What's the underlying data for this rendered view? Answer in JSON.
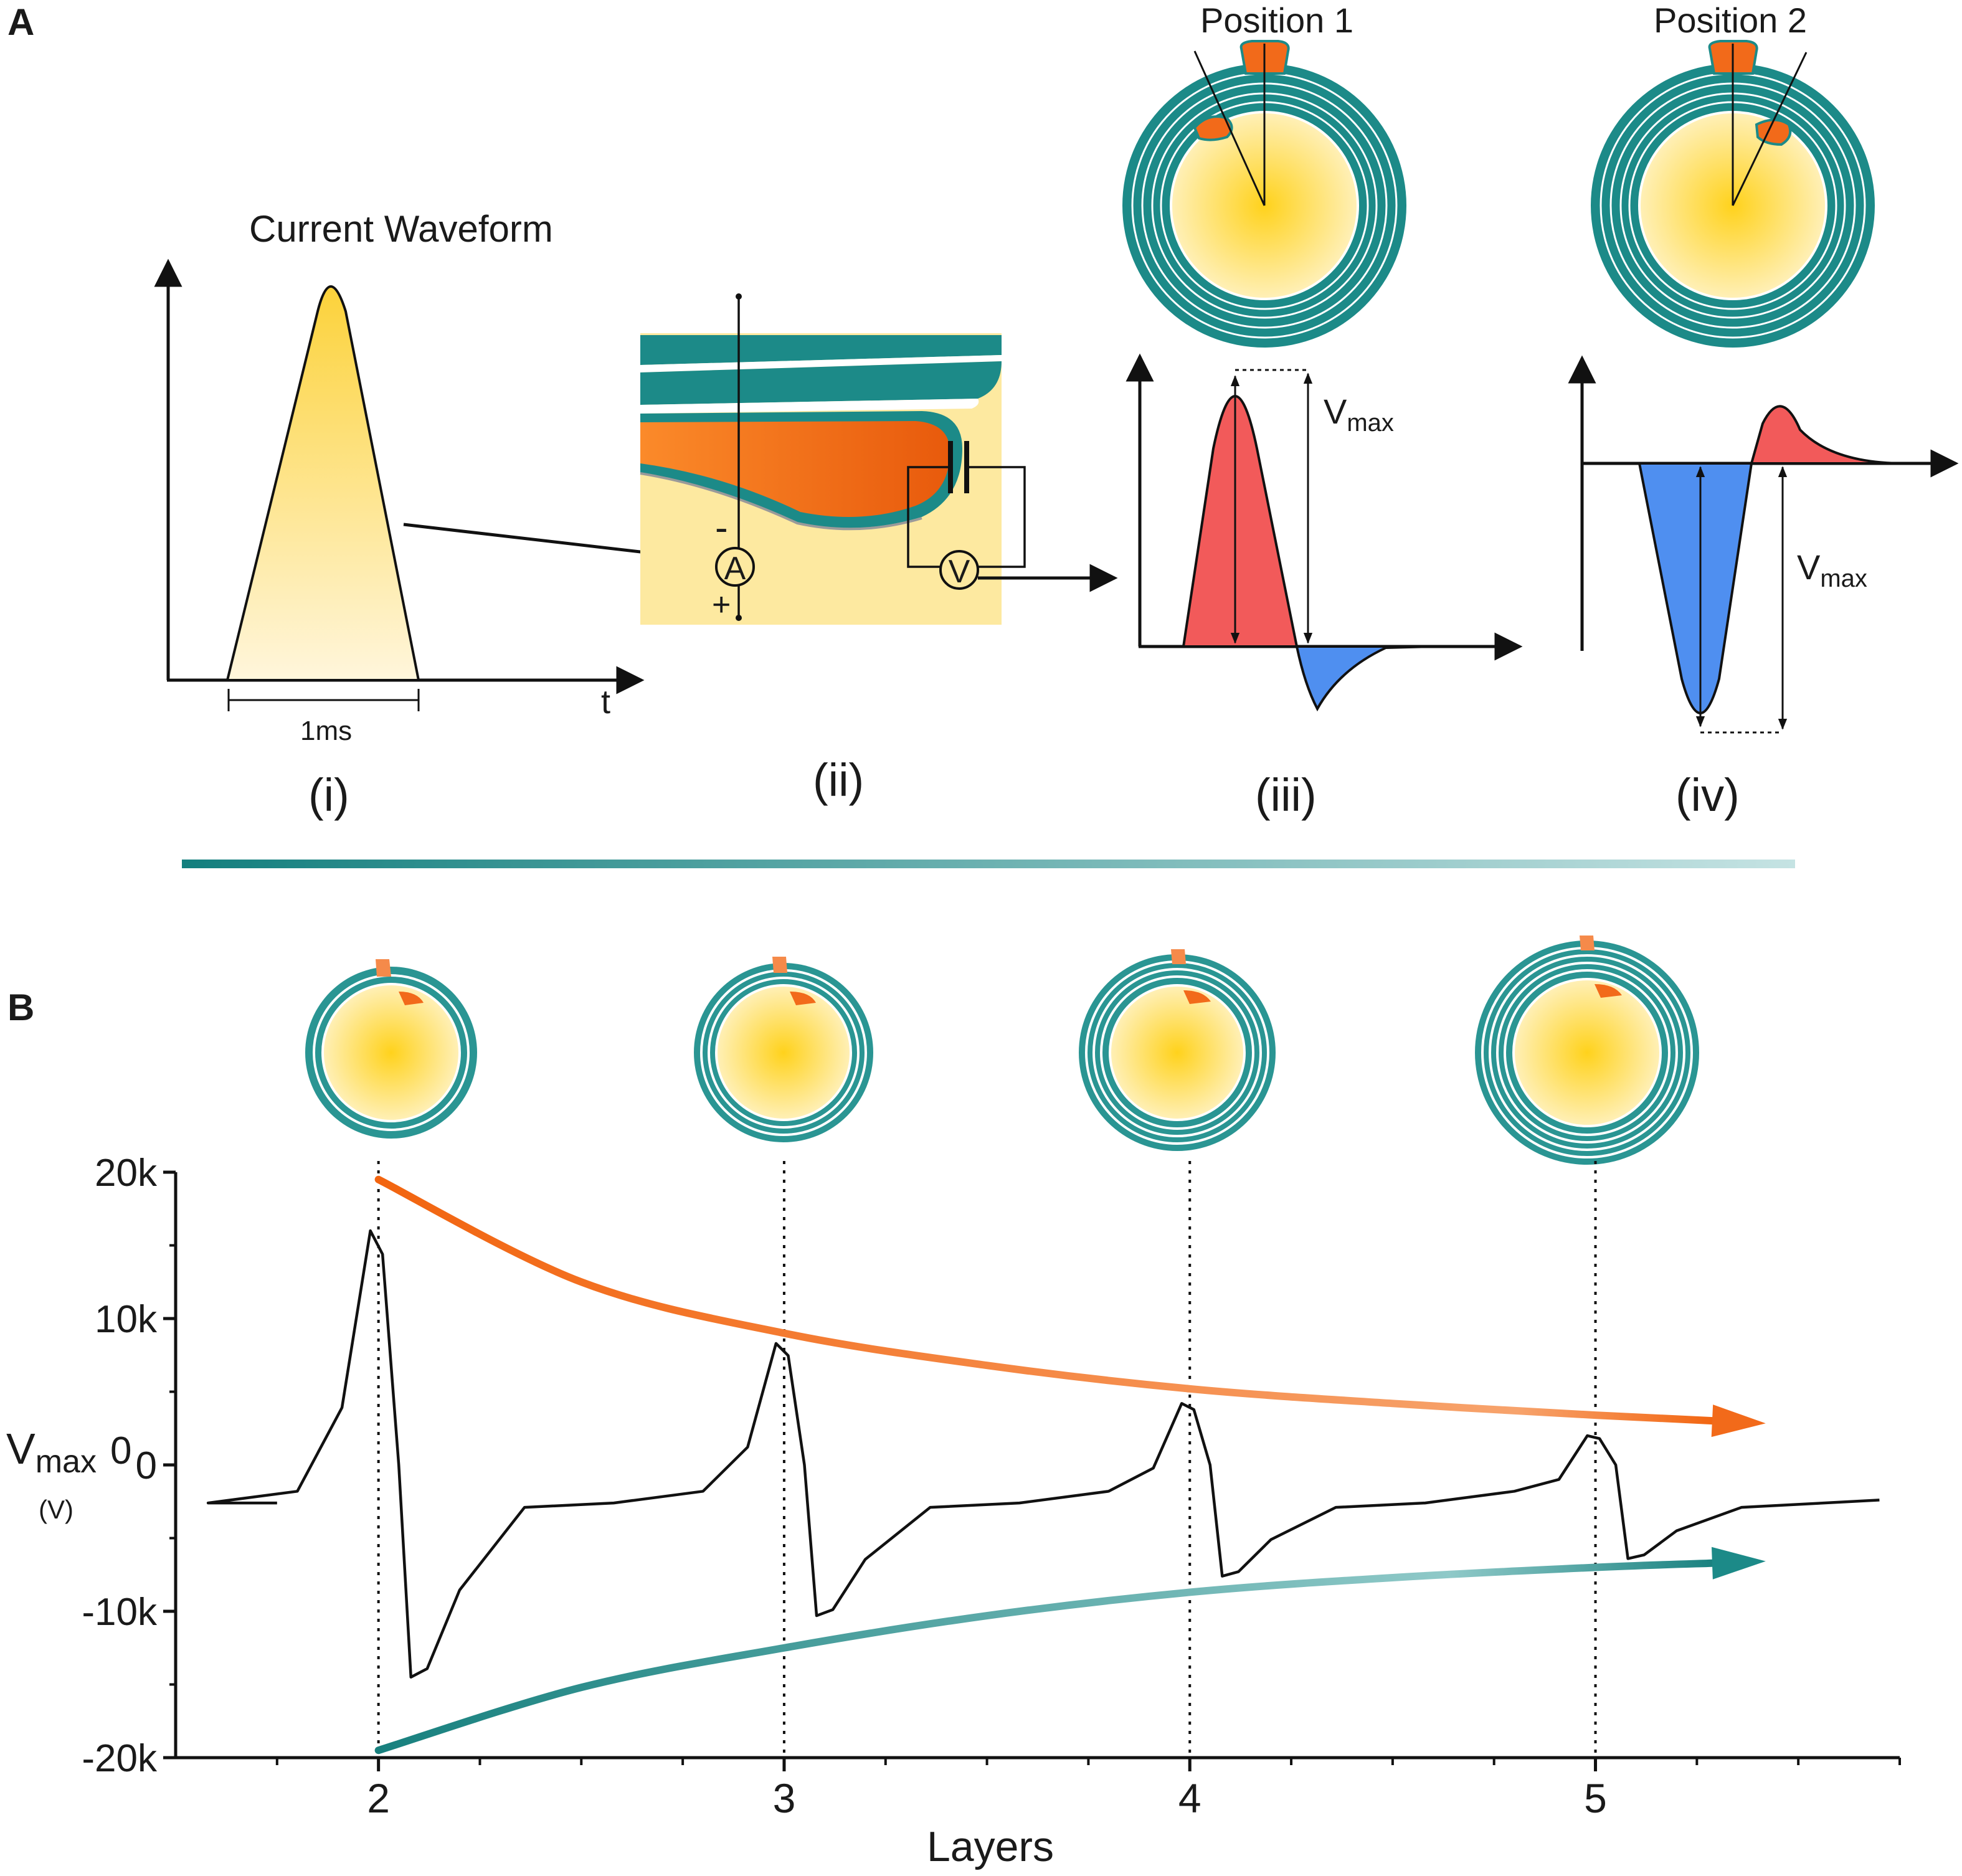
{
  "panel_a": {
    "label": "A",
    "waveform_title": "Current Waveform",
    "duration_label": "1ms",
    "time_axis_label": "t",
    "ammeter_label": "A",
    "voltmeter_label": "V",
    "minus_sign": "-",
    "plus_sign": "+",
    "position1_label": "Position 1",
    "position2_label": "Position 2",
    "vmax_main": "V",
    "vmax_sub": "max",
    "sub_labels": [
      "(i)",
      "(ii)",
      "(iii)",
      "(iv)"
    ]
  },
  "panel_b": {
    "label": "B",
    "y_label_main": "V",
    "y_label_sub": "max",
    "y_label_zero": "0",
    "y_unit": "(V)",
    "x_label": "Layers"
  },
  "colors": {
    "teal": "#1c8a88",
    "orange": "#f26a1a",
    "yellow": "#ffd84a",
    "red_fill": "#f25a5a",
    "blue_fill": "#4f8ff0"
  },
  "chart_data": {
    "type": "line",
    "title": "",
    "xlabel": "Layers",
    "ylabel": "Vmax (V)",
    "xlim": [
      1.5,
      5.75
    ],
    "ylim": [
      -20000,
      20000
    ],
    "x_ticks": [
      2,
      3,
      4,
      5
    ],
    "x_tick_labels": [
      "2",
      "3",
      "4",
      "5"
    ],
    "y_ticks": [
      -20000,
      -10000,
      0,
      10000,
      20000
    ],
    "y_tick_labels": [
      "-20k",
      "-10k",
      "0",
      "10k",
      "20k"
    ],
    "peaks": [
      {
        "layers": 2,
        "positive": 16000,
        "negative": -14500
      },
      {
        "layers": 3,
        "positive": 8300,
        "negative": -10300
      },
      {
        "layers": 4,
        "positive": 4200,
        "negative": -7600
      },
      {
        "layers": 5,
        "positive": 2000,
        "negative": -6400
      }
    ],
    "baseline": -2600,
    "trend_positive": {
      "name": "positive peak trend",
      "x": [
        2,
        2.5,
        3,
        3.5,
        4,
        4.5,
        5,
        5.3
      ],
      "y": [
        19500,
        12500,
        9000,
        6800,
        5200,
        4200,
        3400,
        3000
      ]
    },
    "trend_negative": {
      "name": "negative peak trend",
      "x": [
        2,
        2.5,
        3,
        3.5,
        4,
        4.5,
        5,
        5.3
      ],
      "y": [
        -19500,
        -15200,
        -12500,
        -10300,
        -8700,
        -7700,
        -7000,
        -6700
      ]
    }
  }
}
